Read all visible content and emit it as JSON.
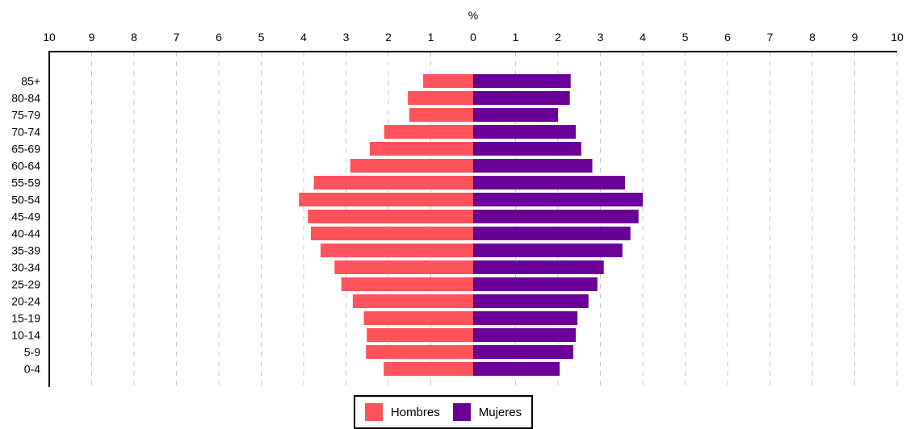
{
  "chart_data": {
    "type": "bar",
    "orientation": "horizontal-population-pyramid",
    "xlabel": "%",
    "xlim": [
      0,
      10
    ],
    "x_ticks": [
      "10",
      "9",
      "8",
      "7",
      "6",
      "5",
      "4",
      "3",
      "2",
      "1",
      "0",
      "1",
      "2",
      "3",
      "4",
      "5",
      "6",
      "7",
      "8",
      "9",
      "10"
    ],
    "categories": [
      "0-4",
      "5-9",
      "10-14",
      "15-19",
      "20-24",
      "25-29",
      "30-34",
      "35-39",
      "40-44",
      "45-49",
      "50-54",
      "55-59",
      "60-64",
      "65-69",
      "70-74",
      "75-79",
      "80-84",
      "85+"
    ],
    "category_labels": [
      "0-4",
      "5-9",
      "10-14",
      "15-19",
      "20-24",
      "25-29",
      "30-34",
      "35-39",
      "40-44",
      "45-49",
      "50-54",
      "55-59",
      "60-64",
      "65-69",
      "70-74",
      "75-79",
      "80-84",
      "85+"
    ],
    "series": [
      {
        "name": "Hombres",
        "color": "#FF525A",
        "side": "left",
        "values": [
          2.11,
          2.53,
          2.51,
          2.58,
          2.84,
          3.11,
          3.27,
          3.6,
          3.83,
          3.9,
          4.11,
          3.76,
          2.9,
          2.44,
          2.1,
          1.51,
          1.54,
          1.18
        ]
      },
      {
        "name": "Mujeres",
        "color": "#6A0097",
        "side": "right",
        "values": [
          2.04,
          2.36,
          2.42,
          2.46,
          2.72,
          2.93,
          3.08,
          3.52,
          3.71,
          3.9,
          4.0,
          3.58,
          2.81,
          2.55,
          2.42,
          2.0,
          2.28,
          2.3
        ]
      }
    ],
    "grid": true,
    "legend_position": "bottom-center"
  },
  "legend": {
    "items": [
      {
        "label": "Hombres",
        "color": "#FF525A"
      },
      {
        "label": "Mujeres",
        "color": "#6A0097"
      }
    ]
  }
}
